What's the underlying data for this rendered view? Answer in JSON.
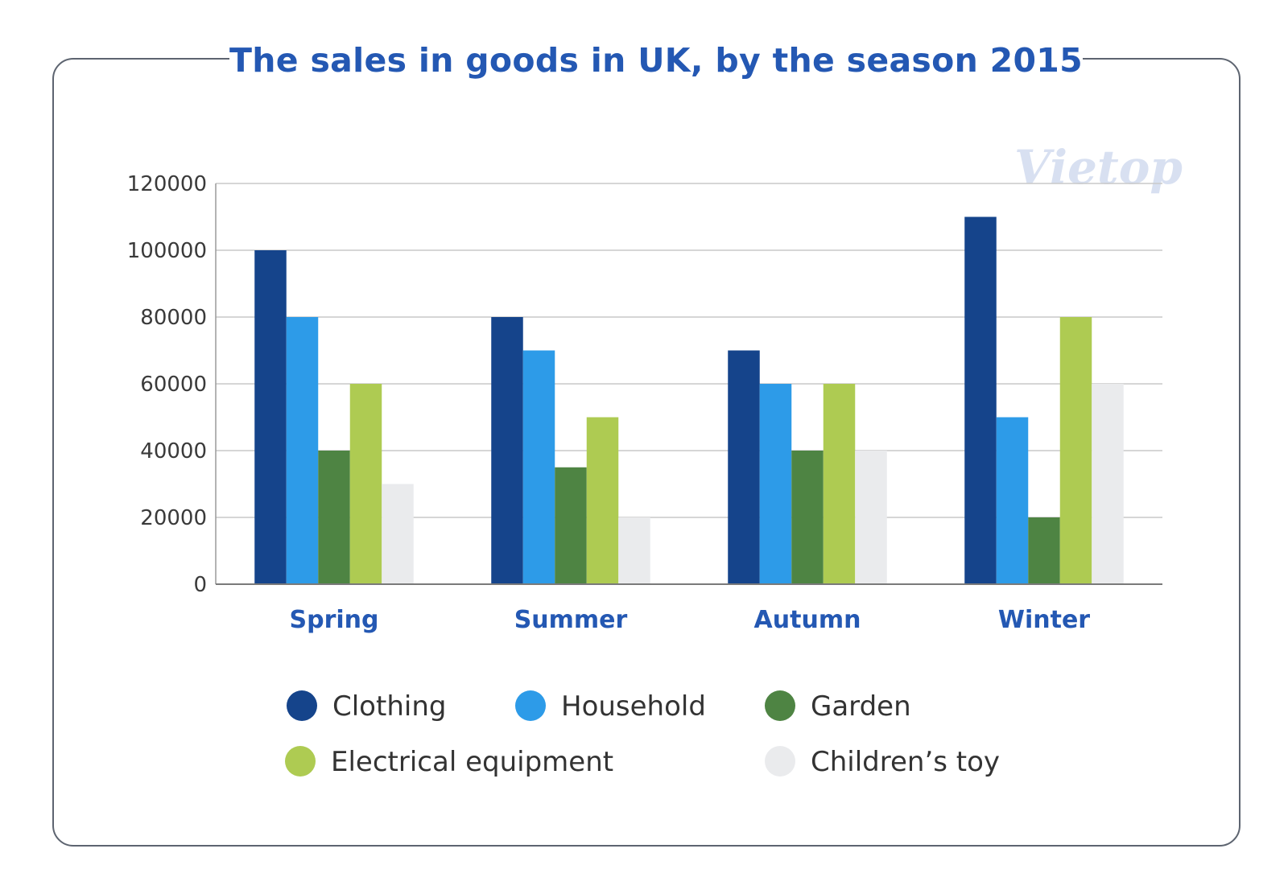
{
  "chart_data": {
    "type": "bar",
    "title": "The sales in goods in UK, by the season 2015",
    "categories": [
      "Spring",
      "Summer",
      "Autumn",
      "Winter"
    ],
    "series": [
      {
        "name": "Clothing",
        "color": "#15448b",
        "values": [
          100000,
          80000,
          70000,
          110000
        ]
      },
      {
        "name": "Household",
        "color": "#2d9be8",
        "values": [
          80000,
          70000,
          60000,
          50000
        ]
      },
      {
        "name": "Garden",
        "color": "#4e8443",
        "values": [
          40000,
          35000,
          40000,
          20000
        ]
      },
      {
        "name": "Electrical equipment",
        "color": "#aecb52",
        "values": [
          60000,
          50000,
          60000,
          80000
        ]
      },
      {
        "name": "Children’s toy",
        "color": "#eaebed",
        "values": [
          30000,
          20000,
          40000,
          60000
        ]
      }
    ],
    "ylim": [
      0,
      120000
    ],
    "yticks": [
      0,
      20000,
      40000,
      60000,
      80000,
      100000,
      120000
    ],
    "grid": true,
    "legend_position": "bottom"
  },
  "watermark": "Vietop"
}
